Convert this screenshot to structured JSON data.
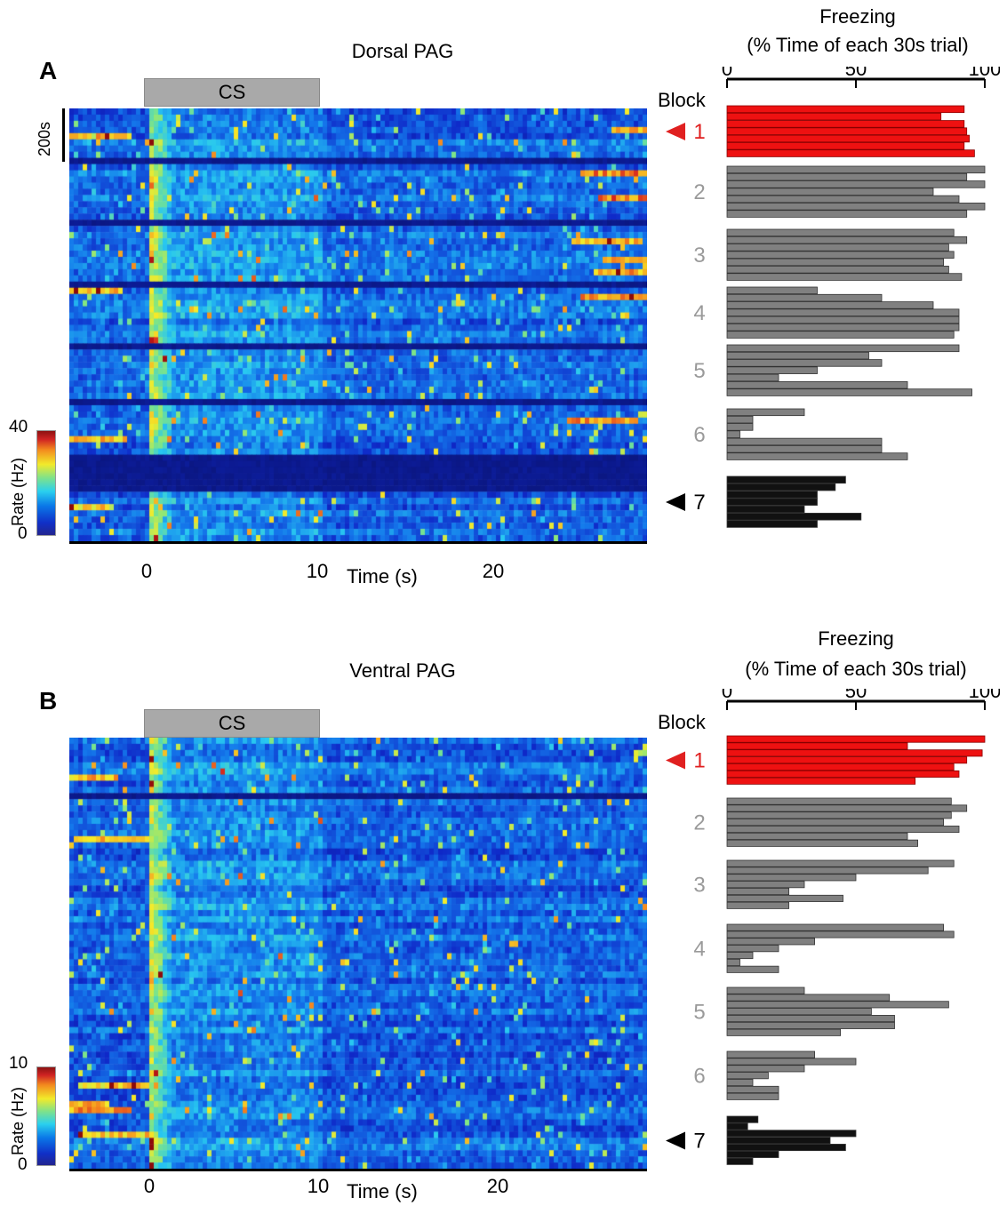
{
  "panelA": {
    "letter": "A",
    "title": "Dorsal PAG",
    "cs_label": "CS",
    "scale_bar_label": "200s",
    "x_ticks": [
      "0",
      "10",
      "20"
    ],
    "x_label": "Time (s)",
    "colorbar": {
      "max": "40",
      "min": "0",
      "label": "Rate (Hz)"
    },
    "freezing": {
      "title": "Freezing",
      "subtitle": "(% Time of each 30s trial)",
      "axis_ticks": [
        "0",
        "50",
        "100"
      ],
      "block_word": "Block",
      "blocks": [
        {
          "label": "1",
          "color": "#ee1111",
          "values": [
            92,
            83,
            92,
            93,
            94,
            92,
            96
          ]
        },
        {
          "label": "2",
          "color": "#808080",
          "values": [
            100,
            93,
            100,
            80,
            90,
            100,
            93
          ]
        },
        {
          "label": "3",
          "color": "#808080",
          "values": [
            88,
            93,
            86,
            88,
            84,
            86,
            91
          ]
        },
        {
          "label": "4",
          "color": "#808080",
          "values": [
            35,
            60,
            80,
            90,
            90,
            90,
            88
          ]
        },
        {
          "label": "5",
          "color": "#808080",
          "values": [
            90,
            55,
            60,
            35,
            20,
            70,
            95
          ]
        },
        {
          "label": "6",
          "color": "#808080",
          "values": [
            30,
            10,
            10,
            5,
            60,
            60,
            70
          ]
        },
        {
          "label": "7",
          "color": "#111111",
          "values": [
            46,
            42,
            35,
            35,
            30,
            52,
            35
          ]
        }
      ]
    }
  },
  "panelB": {
    "letter": "B",
    "title": "Ventral PAG",
    "cs_label": "CS",
    "x_ticks": [
      "0",
      "10",
      "20"
    ],
    "x_label": "Time (s)",
    "colorbar": {
      "max": "10",
      "min": "0",
      "label": "Rate (Hz)"
    },
    "freezing": {
      "title": "Freezing",
      "subtitle": "(% Time of each 30s trial)",
      "axis_ticks": [
        "0",
        "50",
        "100"
      ],
      "block_word": "Block",
      "blocks": [
        {
          "label": "1",
          "color": "#ee1111",
          "values": [
            100,
            70,
            99,
            93,
            88,
            90,
            73
          ]
        },
        {
          "label": "2",
          "color": "#808080",
          "values": [
            87,
            93,
            87,
            84,
            90,
            70,
            74
          ]
        },
        {
          "label": "3",
          "color": "#808080",
          "values": [
            88,
            78,
            50,
            30,
            24,
            45,
            24
          ]
        },
        {
          "label": "4",
          "color": "#808080",
          "values": [
            84,
            88,
            34,
            20,
            10,
            5,
            20
          ]
        },
        {
          "label": "5",
          "color": "#808080",
          "values": [
            30,
            63,
            86,
            56,
            65,
            65,
            44
          ]
        },
        {
          "label": "6",
          "color": "#808080",
          "values": [
            34,
            50,
            30,
            16,
            10,
            20,
            20
          ]
        },
        {
          "label": "7",
          "color": "#111111",
          "values": [
            12,
            8,
            50,
            40,
            46,
            20,
            10
          ]
        }
      ]
    }
  }
}
